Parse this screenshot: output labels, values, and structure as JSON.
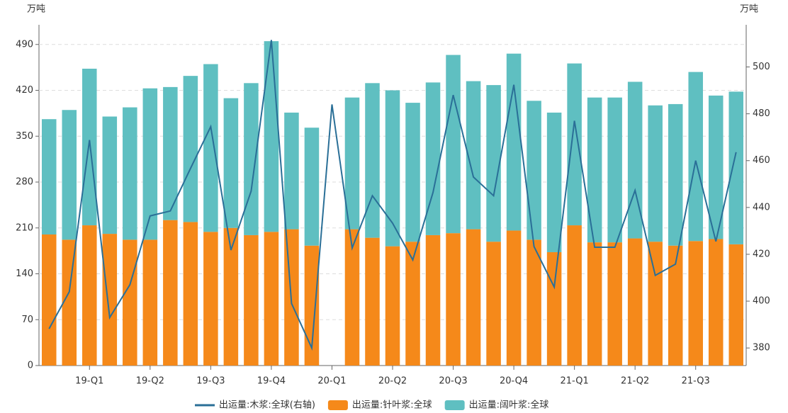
{
  "chart_data": {
    "type": "bar_line",
    "y_unit": "万吨",
    "y2_unit": "万吨",
    "categories": [
      null,
      null,
      "19-Q1",
      null,
      null,
      "19-Q2",
      null,
      null,
      "19-Q3",
      null,
      null,
      "19-Q4",
      null,
      null,
      "20-Q1",
      null,
      null,
      "20-Q2",
      null,
      null,
      "20-Q3",
      null,
      null,
      "20-Q4",
      null,
      null,
      "21-Q1",
      null,
      null,
      "21-Q2",
      null,
      null,
      "21-Q3",
      null,
      null
    ],
    "series": [
      {
        "name": "出运量:针叶浆:全球",
        "kind": "bar",
        "color": "#f5891a",
        "values": [
          200,
          192,
          214,
          201,
          192,
          192,
          222,
          219,
          204,
          210,
          199,
          204,
          208,
          183,
          null,
          208,
          195,
          182,
          189,
          199,
          202,
          208,
          189,
          206,
          192,
          173,
          214,
          188,
          188,
          194,
          189,
          183,
          190,
          193,
          185
        ]
      },
      {
        "name": "出运量:阔叶浆:全球",
        "kind": "bar",
        "color": "#5fbfc1",
        "values": [
          176,
          198,
          239,
          179,
          202,
          231,
          203,
          223,
          256,
          198,
          232,
          291,
          178,
          180,
          null,
          201,
          236,
          238,
          212,
          233,
          272,
          226,
          239,
          270,
          212,
          213,
          247,
          221,
          221,
          239,
          208,
          216,
          258,
          219,
          233
        ]
      },
      {
        "name": "出运量:木浆:全球(右轴)",
        "kind": "line",
        "axis": "y2",
        "color": "#2a6f97",
        "values": [
          388.2,
          404,
          468.8,
          393,
          407,
          436.4,
          438.5,
          456.7,
          474.5,
          421.8,
          447,
          511.5,
          399,
          380,
          484,
          422.7,
          445,
          433.3,
          417.6,
          446.4,
          488,
          453,
          445,
          492.4,
          423.3,
          406,
          477,
          423,
          423,
          447.3,
          411,
          415.8,
          460,
          425.5,
          463.6
        ]
      }
    ],
    "ylim": [
      0,
      520
    ],
    "yticks": [
      0,
      70,
      140,
      210,
      280,
      350,
      420,
      490
    ],
    "y2lim": [
      372.5,
      518
    ],
    "y2ticks": [
      380,
      400,
      420,
      440,
      460,
      480,
      500
    ],
    "grid": true,
    "legend": "bottom"
  }
}
